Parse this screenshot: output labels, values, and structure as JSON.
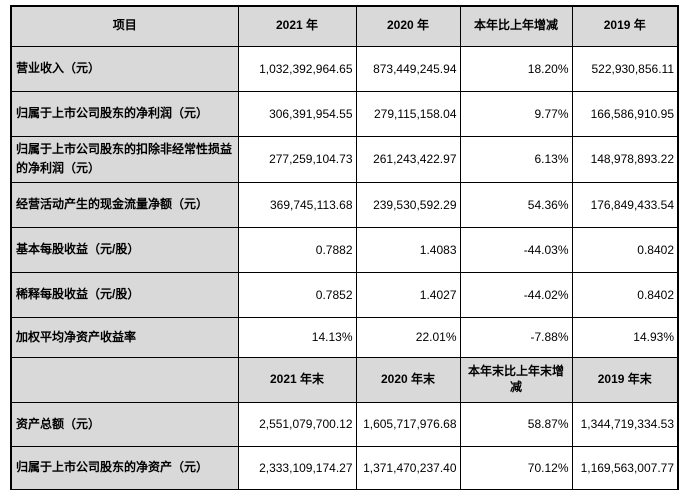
{
  "colors": {
    "header_bg": "#d9d9d9",
    "border": "#000000",
    "cell_bg": "#ffffff",
    "text": "#000000"
  },
  "table": {
    "header1": {
      "item": "项目",
      "c2021": "2021 年",
      "c2020": "2020 年",
      "change": "本年比上年增减",
      "c2019": "2019 年"
    },
    "rows1": [
      {
        "label": "营业收入（元）",
        "values": [
          "1,032,392,964.65",
          "873,449,245.94",
          "18.20%",
          "522,930,856.11"
        ]
      },
      {
        "label": "归属于上市公司股东的净利润（元）",
        "values": [
          "306,391,954.55",
          "279,115,158.04",
          "9.77%",
          "166,586,910.95"
        ]
      },
      {
        "label": "归属于上市公司股东的扣除非经常性损益的净利润（元）",
        "values": [
          "277,259,104.73",
          "261,243,422.97",
          "6.13%",
          "148,978,893.22"
        ]
      },
      {
        "label": "经营活动产生的现金流量净额（元）",
        "values": [
          "369,745,113.68",
          "239,530,592.29",
          "54.36%",
          "176,849,433.54"
        ]
      },
      {
        "label": "基本每股收益（元/股）",
        "values": [
          "0.7882",
          "1.4083",
          "-44.03%",
          "0.8402"
        ]
      },
      {
        "label": "稀释每股收益（元/股）",
        "values": [
          "0.7852",
          "1.4027",
          "-44.02%",
          "0.8402"
        ]
      },
      {
        "label": "加权平均净资产收益率",
        "values": [
          "14.13%",
          "22.01%",
          "-7.88%",
          "14.93%"
        ]
      }
    ],
    "header2": {
      "item": "",
      "c2021": "2021 年末",
      "c2020": "2020 年末",
      "change": "本年末比上年末增减",
      "c2019": "2019 年末"
    },
    "rows2": [
      {
        "label": "资产总额（元）",
        "values": [
          "2,551,079,700.12",
          "1,605,717,976.68",
          "58.87%",
          "1,344,719,334.53"
        ]
      },
      {
        "label": "归属于上市公司股东的净资产（元）",
        "values": [
          "2,333,109,174.27",
          "1,371,470,237.40",
          "70.12%",
          "1,169,563,007.77"
        ]
      }
    ]
  }
}
